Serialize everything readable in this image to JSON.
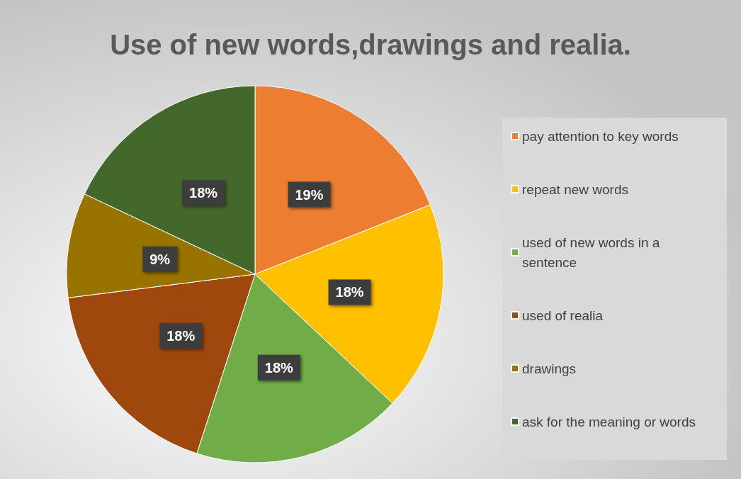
{
  "chart_data": {
    "type": "pie",
    "title": "Use of new words,drawings and realia.",
    "categories": [
      "pay attention to key words",
      "repeat new words",
      "used of new words in a sentence",
      "used of realia",
      "drawings",
      "ask for the meaning or words"
    ],
    "values": [
      19,
      18,
      18,
      18,
      9,
      18
    ],
    "value_labels": [
      "19%",
      "18%",
      "18%",
      "18%",
      "9%",
      "18%"
    ],
    "colors": [
      "#ed7d31",
      "#ffc000",
      "#70ad47",
      "#9e480e",
      "#997300",
      "#43682b"
    ],
    "legend": "right"
  }
}
